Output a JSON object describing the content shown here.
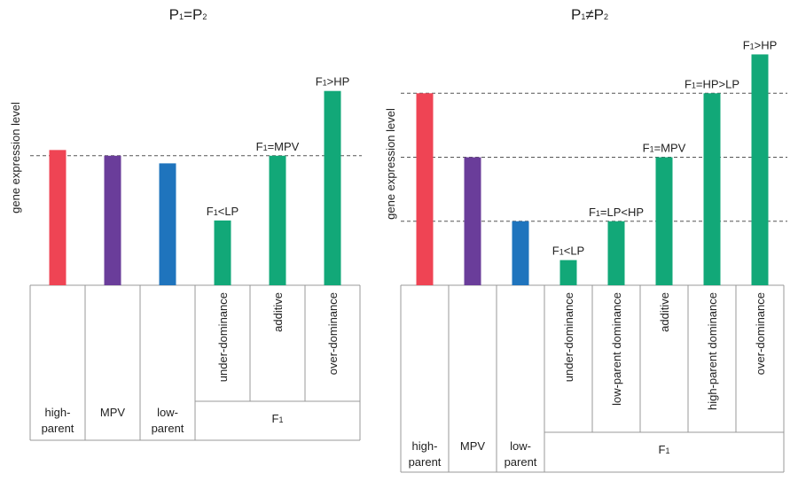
{
  "chart_data": [
    {
      "type": "bar",
      "title": "P₁=P₂",
      "ylabel": "gene expression level",
      "ylim": [
        0,
        100
      ],
      "grid": false,
      "categories": [
        "high-parent",
        "MPV",
        "low-parent",
        "under-dominance",
        "additive",
        "over-dominance"
      ],
      "category_groups": [
        {
          "label": "high-parent",
          "categories": [
            "high-parent"
          ]
        },
        {
          "label": "MPV",
          "categories": [
            "MPV"
          ]
        },
        {
          "label": "low-parent",
          "categories": [
            "low-parent"
          ]
        },
        {
          "label": "F₁",
          "categories": [
            "under-dominance",
            "additive",
            "over-dominance"
          ]
        }
      ],
      "values": [
        71,
        68,
        64,
        34,
        68,
        102
      ],
      "bar_colors": [
        "#ef4454",
        "#6a3d9a",
        "#1f74bd",
        "#12a878",
        "#12a878",
        "#12a878"
      ],
      "annotations": [
        "",
        "",
        "",
        "F₁<LP",
        "F₁=MPV",
        "F₁>HP"
      ],
      "reference_lines": [
        68
      ]
    },
    {
      "type": "bar",
      "title": "P₁≠P₂",
      "ylabel": "gene expression level",
      "ylim": [
        0,
        100
      ],
      "grid": false,
      "categories": [
        "high-parent",
        "MPV",
        "low-parent",
        "under-dominance",
        "low-parent dominance",
        "additive",
        "high-parent dominance",
        "over-dominance"
      ],
      "category_groups": [
        {
          "label": "high-parent",
          "categories": [
            "high-parent"
          ]
        },
        {
          "label": "MPV",
          "categories": [
            "MPV"
          ]
        },
        {
          "label": "low-parent",
          "categories": [
            "low-parent"
          ]
        },
        {
          "label": "F₁",
          "categories": [
            "under-dominance",
            "low-parent dominance",
            "additive",
            "high-parent dominance",
            "over-dominance"
          ]
        }
      ],
      "values": [
        84,
        56,
        28,
        11,
        28,
        56,
        84,
        101
      ],
      "bar_colors": [
        "#ef4454",
        "#6a3d9a",
        "#1f74bd",
        "#12a878",
        "#12a878",
        "#12a878",
        "#12a878",
        "#12a878"
      ],
      "annotations": [
        "",
        "",
        "",
        "F₁<LP",
        "F₁=LP<HP",
        "F₁=MPV",
        "F₁=HP>LP",
        "F₁>HP"
      ],
      "reference_lines": [
        84,
        56,
        28
      ]
    }
  ]
}
